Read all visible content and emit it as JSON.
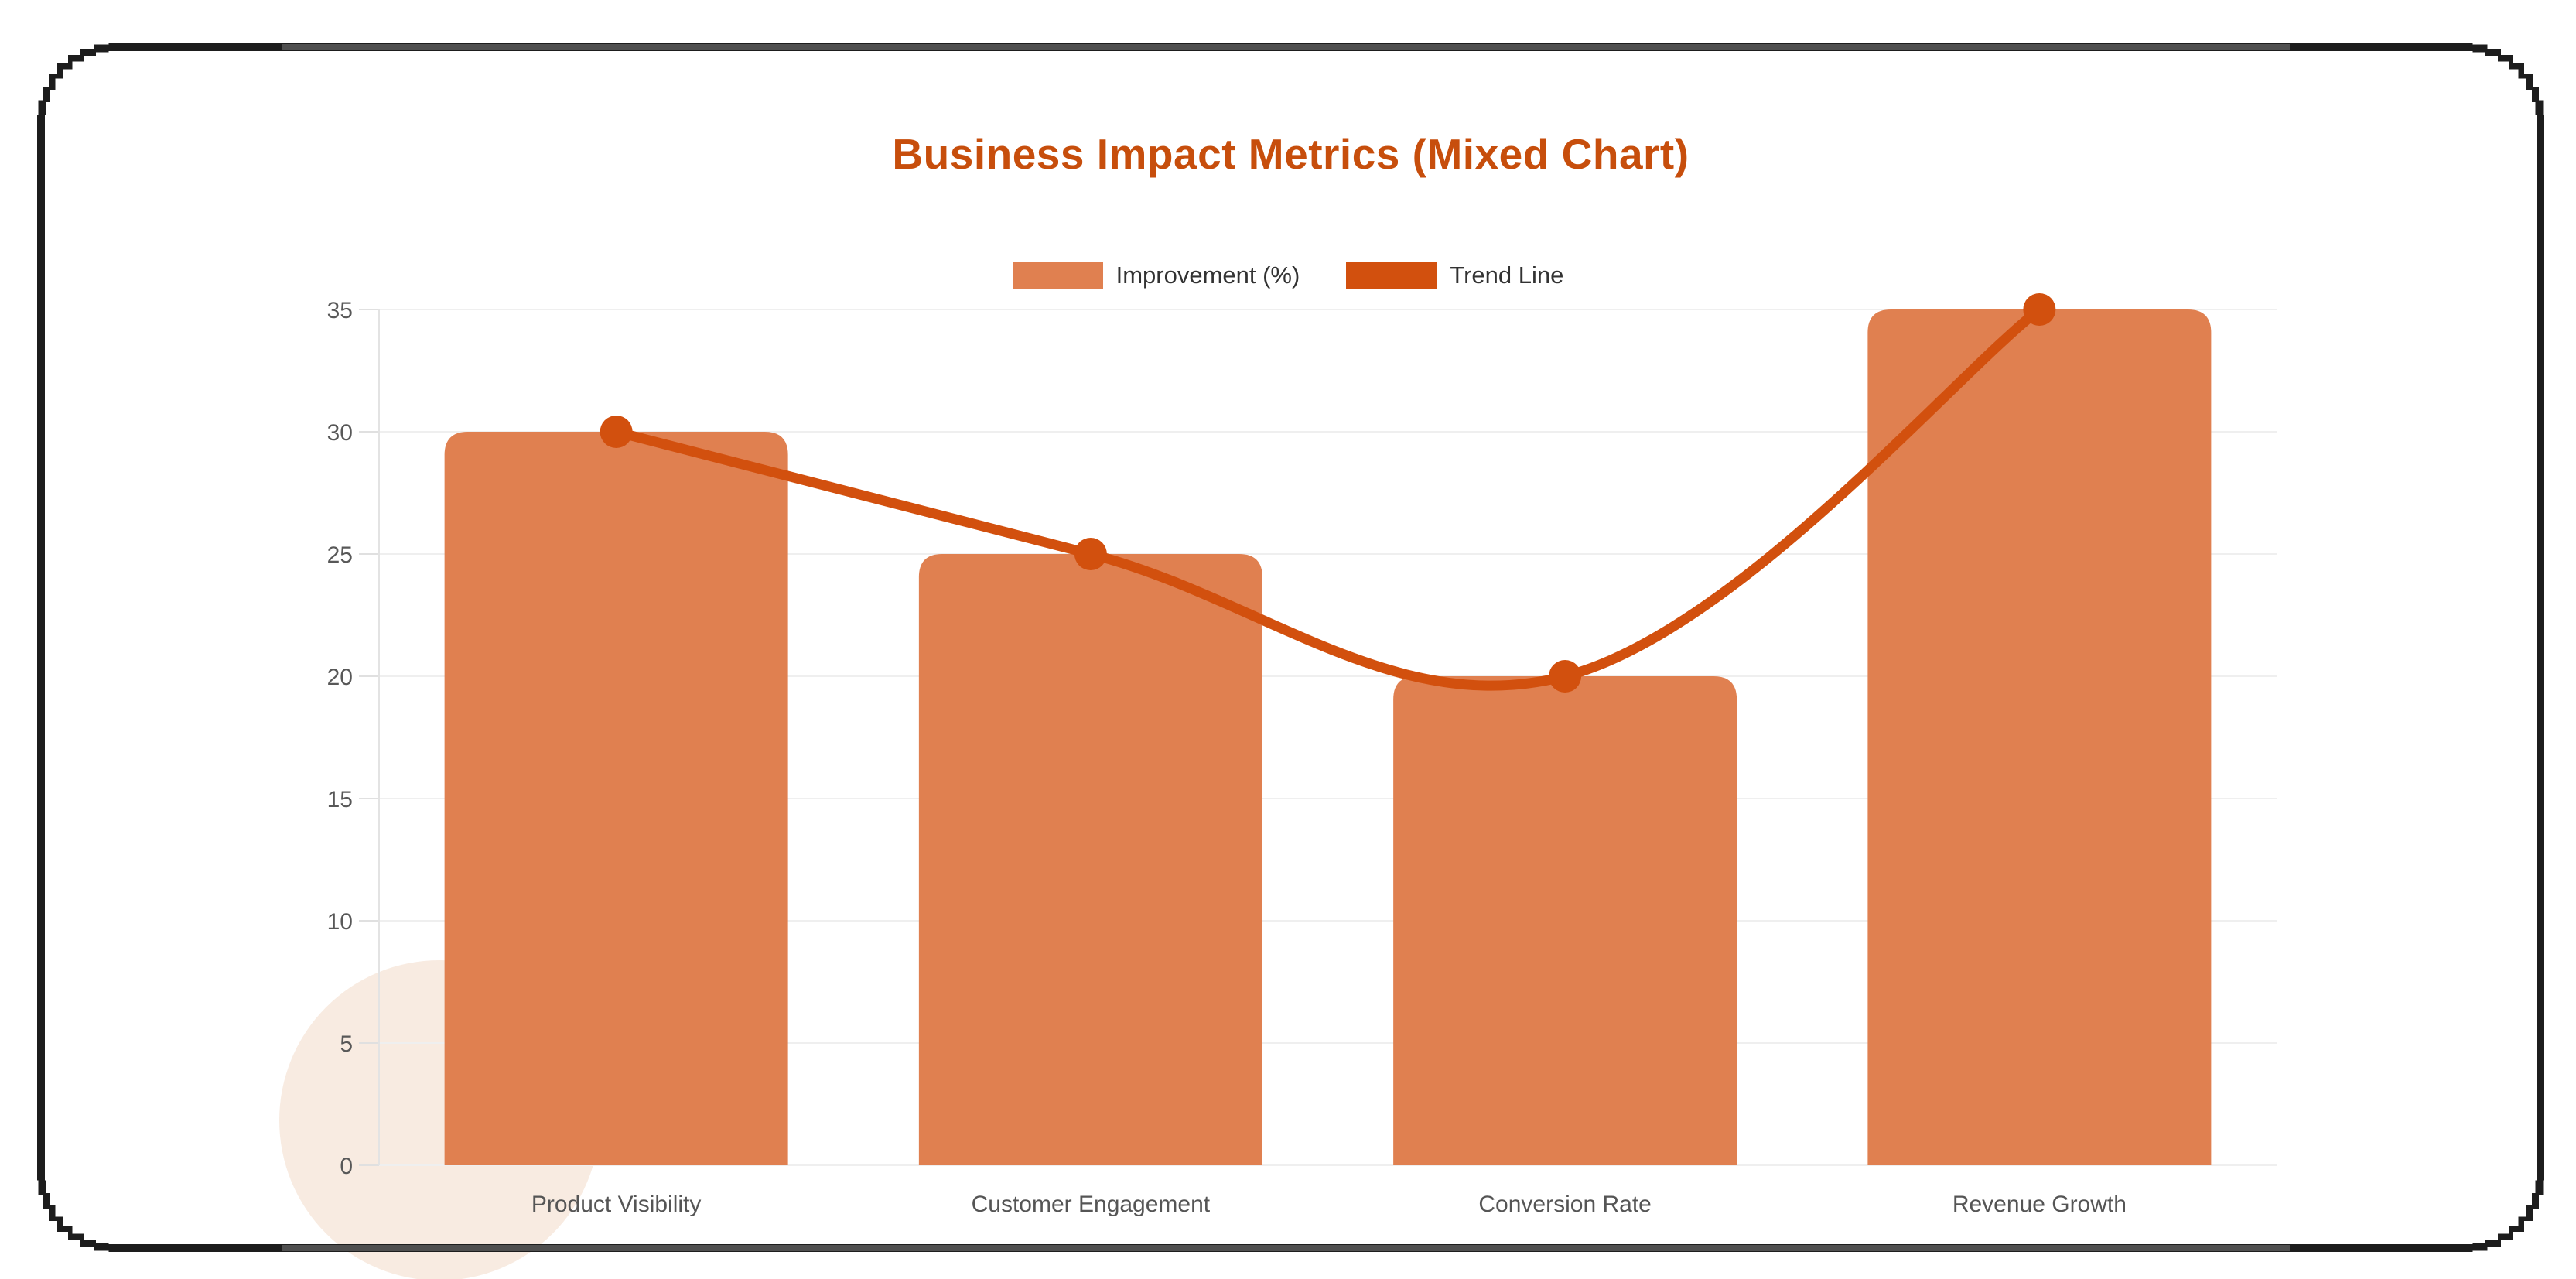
{
  "title": {
    "text": "Business Impact Metrics (Mixed Chart)",
    "color": "#c74e0c"
  },
  "legend": {
    "position": "top",
    "items": [
      {
        "label": "Improvement (%)",
        "color": "#e08050"
      },
      {
        "label": "Trend Line",
        "color": "#d2500e"
      }
    ]
  },
  "chart_data": {
    "type": "mixed-bar-line",
    "title": "Business Impact Metrics (Mixed Chart)",
    "categories": [
      "Product Visibility",
      "Customer Engagement",
      "Conversion Rate",
      "Revenue Growth"
    ],
    "series": [
      {
        "name": "Improvement (%)",
        "type": "bar",
        "values": [
          30,
          25,
          20,
          35
        ],
        "color": "#e08050"
      },
      {
        "name": "Trend Line",
        "type": "line",
        "values": [
          30,
          25,
          20,
          35
        ],
        "color": "#d2500e"
      }
    ],
    "xlabel": "",
    "ylabel": "",
    "ylim": [
      0,
      35
    ],
    "yticks": [
      0,
      5,
      10,
      15,
      20,
      25,
      30,
      35
    ],
    "grid": true,
    "legend_position": "top"
  },
  "axis": {
    "tick_label_color": "#585858",
    "category_label_color": "#555555",
    "grid_color": "#efefef",
    "axis_line_color": "#e3e3e3",
    "tick_mark_color": "#e0e0e0"
  },
  "frame": {
    "color": "#1d1d1d",
    "accent_color": "#4f4f4f"
  },
  "decor": {
    "circle_color": "#f8ebe1"
  }
}
